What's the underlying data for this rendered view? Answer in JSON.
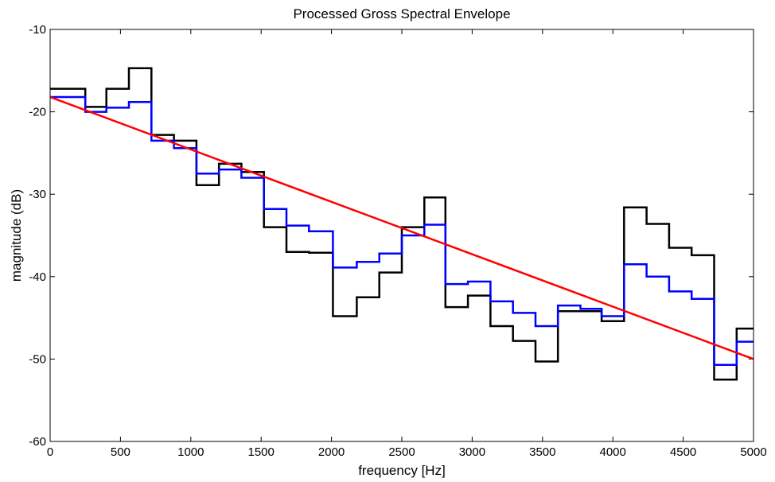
{
  "chart_data": {
    "type": "line",
    "title": "Processed Gross Spectral Envelope",
    "xlabel": "frequency [Hz]",
    "ylabel": "magnitude (dB)",
    "xlim": [
      0,
      5000
    ],
    "ylim": [
      -60,
      -10
    ],
    "xticks": [
      0,
      500,
      1000,
      1500,
      2000,
      2500,
      3000,
      3500,
      4000,
      4500,
      5000
    ],
    "yticks": [
      -60,
      -50,
      -40,
      -30,
      -20,
      -10
    ],
    "grid": false,
    "legend": "none",
    "series": [
      {
        "color": "#000000",
        "step": true,
        "x": [
          0,
          250,
          400,
          560,
          720,
          880,
          1040,
          1200,
          1360,
          1520,
          1680,
          1840,
          2010,
          2180,
          2340,
          2500,
          2660,
          2810,
          2970,
          3130,
          3290,
          3450,
          3610,
          3770,
          3920,
          4080,
          4240,
          4400,
          4560,
          4720,
          4880,
          5000
        ],
        "y": [
          -17.2,
          -19.4,
          -17.2,
          -14.7,
          -22.8,
          -23.5,
          -28.9,
          -26.3,
          -27.3,
          -34.0,
          -37.0,
          -37.1,
          -44.8,
          -42.5,
          -39.5,
          -34.0,
          -30.4,
          -43.7,
          -42.3,
          -46.0,
          -47.8,
          -50.3,
          -44.2,
          -44.2,
          -45.4,
          -31.6,
          -33.6,
          -36.5,
          -37.4,
          -52.5,
          -46.3,
          -46.3
        ]
      },
      {
        "color": "#0000ff",
        "step": true,
        "x": [
          0,
          250,
          400,
          560,
          720,
          880,
          1040,
          1200,
          1360,
          1520,
          1680,
          1840,
          2010,
          2180,
          2340,
          2500,
          2660,
          2810,
          2970,
          3130,
          3290,
          3450,
          3610,
          3770,
          3920,
          4080,
          4240,
          4400,
          4560,
          4720,
          4880,
          5000
        ],
        "y": [
          -18.2,
          -20.0,
          -19.5,
          -18.8,
          -23.5,
          -24.4,
          -27.5,
          -27.0,
          -28.0,
          -31.8,
          -33.8,
          -34.5,
          -38.9,
          -38.2,
          -37.2,
          -35.0,
          -33.7,
          -40.9,
          -40.6,
          -43.0,
          -44.4,
          -46.0,
          -43.5,
          -43.9,
          -44.8,
          -38.5,
          -40.0,
          -41.8,
          -42.7,
          -50.7,
          -47.9,
          -47.9
        ]
      },
      {
        "color": "#ff0000",
        "step": false,
        "x": [
          0,
          5000
        ],
        "y": [
          -18.2,
          -50.0
        ]
      }
    ]
  }
}
